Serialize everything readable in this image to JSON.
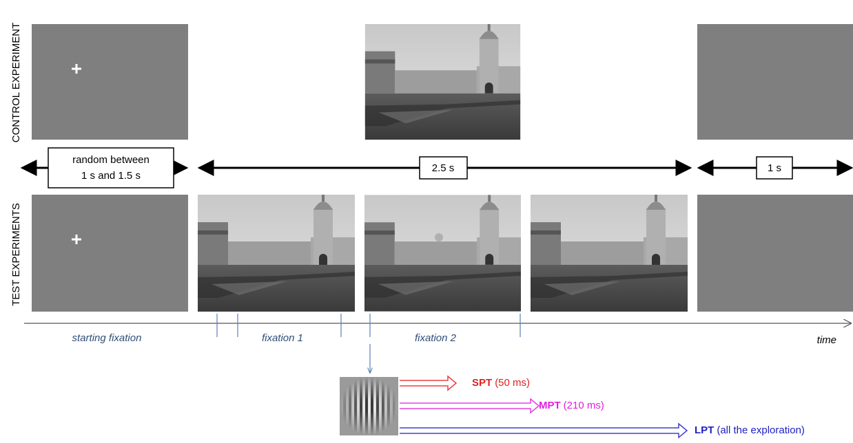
{
  "row_labels": {
    "control": "CONTROL EXPERIMENT",
    "test": "TEST EXPERIMENTS"
  },
  "durations": {
    "random": [
      "random between",
      "1 s and 1.5 s"
    ],
    "stimulus": "2.5 s",
    "blank": "1 s"
  },
  "timeline": {
    "starting": "starting fixation",
    "fixation1": "fixation 1",
    "fixation2": "fixation 2",
    "axis": "time"
  },
  "filters": [
    {
      "name": "SPT",
      "detail": "(50 ms)"
    },
    {
      "name": "MPT",
      "detail": "(210 ms)"
    },
    {
      "name": "LPT",
      "detail": "(all the exploration)"
    }
  ]
}
